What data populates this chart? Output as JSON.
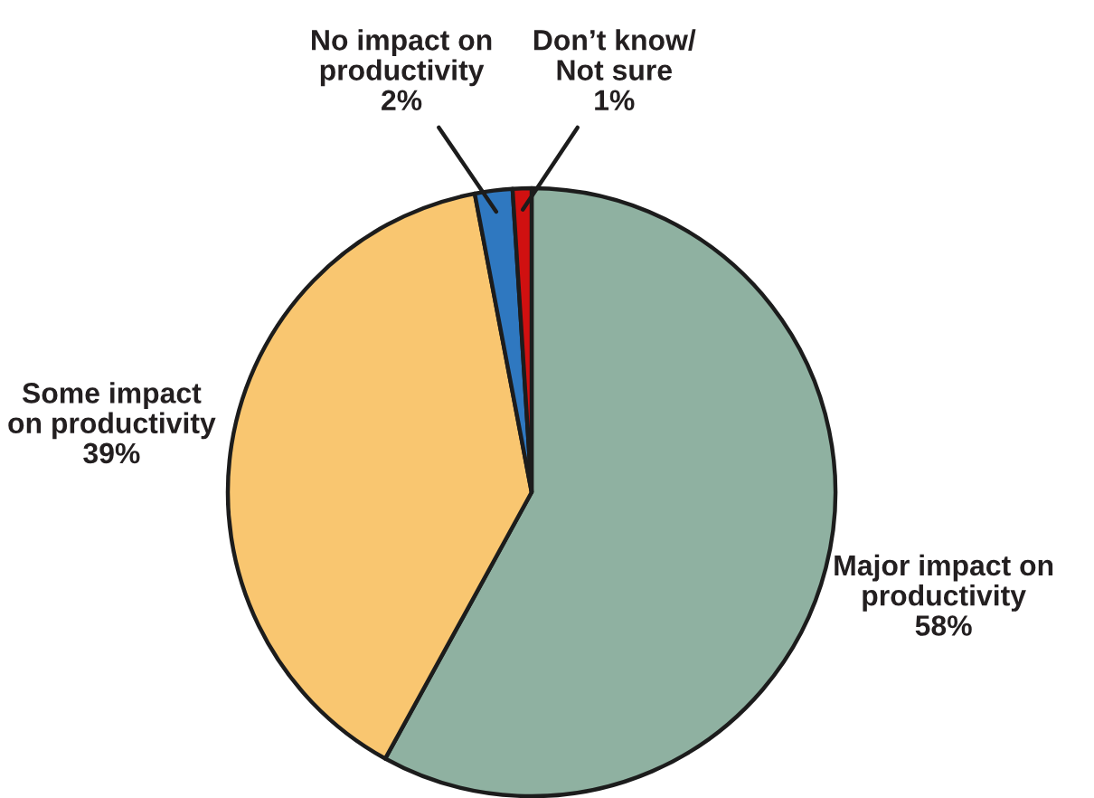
{
  "chart_data": {
    "type": "pie",
    "categories": [
      "Major impact on\nproductivity",
      "Some impact\non productivity",
      "No impact on\nproductivity",
      "Don’t know/\nNot sure"
    ],
    "values": [
      58,
      39,
      2,
      1
    ],
    "value_labels": [
      "58%",
      "39%",
      "2%",
      "1%"
    ],
    "colors": [
      "#8fb1a1",
      "#f9c670",
      "#2f78c0",
      "#d01010"
    ]
  }
}
